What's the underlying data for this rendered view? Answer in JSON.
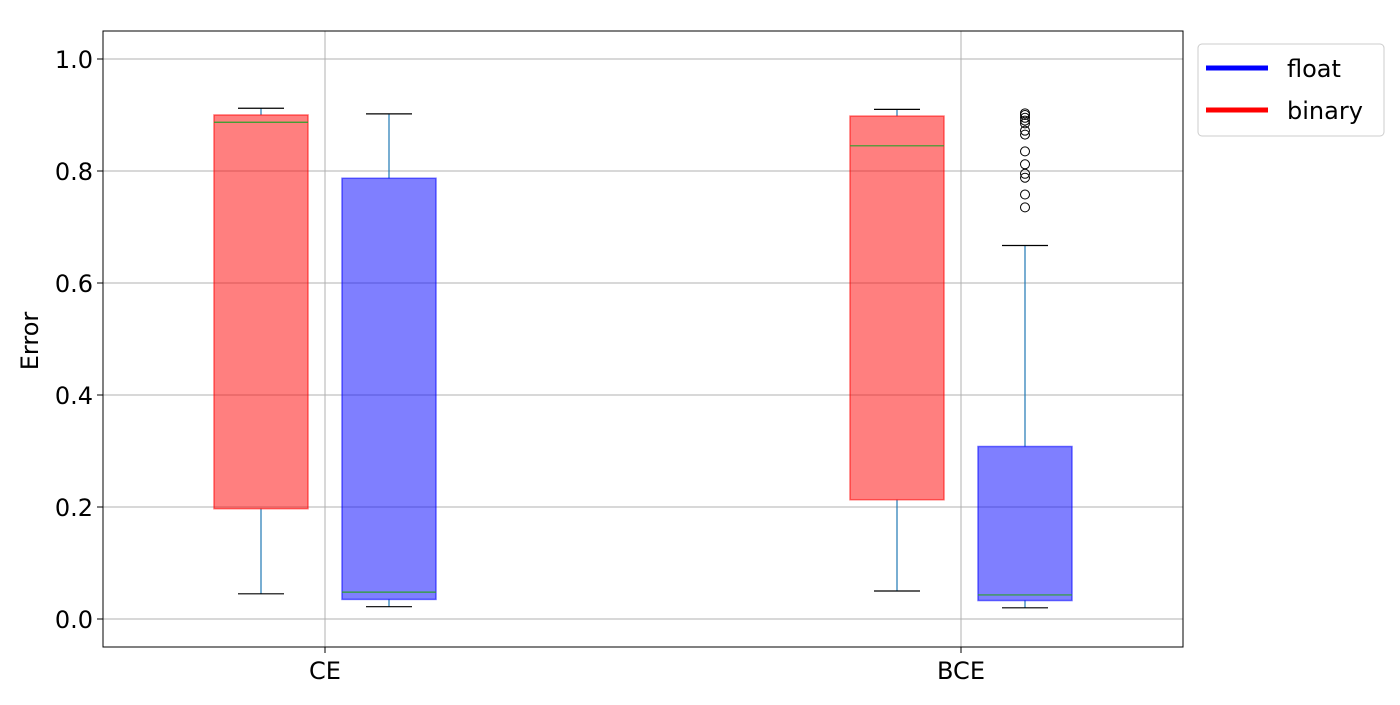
{
  "chart_data": {
    "type": "boxplot",
    "title": "",
    "xlabel": "",
    "ylabel": "Error",
    "ylim": [
      -0.05,
      1.05
    ],
    "yticks": [
      "0.0",
      "0.2",
      "0.4",
      "0.6",
      "0.8",
      "1.0"
    ],
    "categories": [
      "CE",
      "BCE"
    ],
    "grid": true,
    "legend": {
      "placement": "outside-top-right",
      "entries": [
        {
          "label": "float",
          "color": "#0000ff"
        },
        {
          "label": "binary",
          "color": "#ff0000"
        }
      ]
    },
    "series": [
      {
        "name": "binary",
        "fill": "#ff0000",
        "boxes": [
          {
            "category": "CE",
            "whisker_low": 0.045,
            "q1": 0.197,
            "median": 0.887,
            "q3": 0.9,
            "whisker_high": 0.912,
            "outliers": []
          },
          {
            "category": "BCE",
            "whisker_low": 0.05,
            "q1": 0.213,
            "median": 0.845,
            "q3": 0.898,
            "whisker_high": 0.91,
            "outliers": []
          }
        ]
      },
      {
        "name": "float",
        "fill": "#0000ff",
        "boxes": [
          {
            "category": "CE",
            "whisker_low": 0.022,
            "q1": 0.035,
            "median": 0.048,
            "q3": 0.787,
            "whisker_high": 0.902,
            "outliers": []
          },
          {
            "category": "BCE",
            "whisker_low": 0.02,
            "q1": 0.033,
            "median": 0.043,
            "q3": 0.308,
            "whisker_high": 0.667,
            "outliers": [
              0.735,
              0.758,
              0.788,
              0.795,
              0.812,
              0.835,
              0.865,
              0.872,
              0.885,
              0.89,
              0.895,
              0.9,
              0.903
            ]
          }
        ]
      }
    ]
  }
}
